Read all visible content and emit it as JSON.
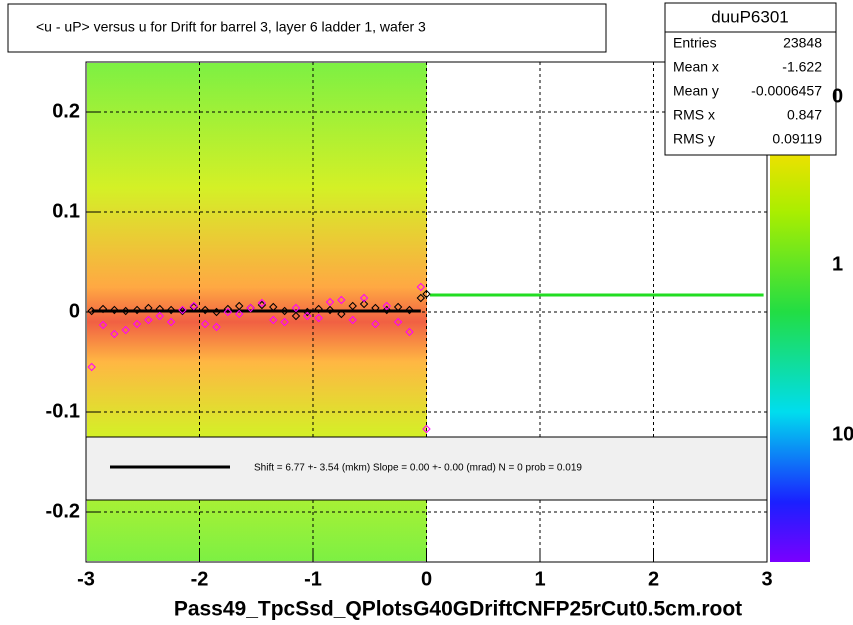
{
  "chart_data": {
    "type": "profile",
    "title": "<u - uP>       versus   u for Drift for barrel 3, layer 6 ladder 1, wafer 3",
    "x_label": "Pass49_TpcSsd_QPlotsG40GDriftCNFP25rCut0.5cm.root",
    "xlim": [
      -3,
      3
    ],
    "ylim": [
      -0.25,
      0.25
    ],
    "xticks": [
      -3,
      -2,
      -1,
      0,
      1,
      2,
      3
    ],
    "yticks": [
      -0.2,
      -0.1,
      0,
      0.1,
      0.2
    ],
    "grid": true,
    "x": [
      -2.95,
      -2.85,
      -2.75,
      -2.65,
      -2.55,
      -2.45,
      -2.35,
      -2.25,
      -2.15,
      -2.05,
      -1.95,
      -1.85,
      -1.75,
      -1.65,
      -1.55,
      -1.45,
      -1.35,
      -1.25,
      -1.15,
      -1.05,
      -0.95,
      -0.85,
      -0.75,
      -0.65,
      -0.55,
      -0.45,
      -0.35,
      -0.25,
      -0.15,
      -0.05,
      0.0
    ],
    "series": [
      {
        "name": "profile",
        "color": "#000000",
        "values": [
          0.001,
          0.003,
          0.002,
          0.001,
          0.002,
          0.004,
          0.003,
          0.002,
          0.001,
          0.005,
          0.002,
          0.0,
          0.003,
          0.006,
          0.004,
          0.007,
          0.005,
          0.001,
          -0.004,
          0.0,
          0.003,
          0.002,
          -0.002,
          0.006,
          0.008,
          0.004,
          0.002,
          0.005,
          0.002,
          0.014,
          0.018
        ]
      },
      {
        "name": "mean",
        "color": "#ff00ff",
        "values": [
          -0.055,
          -0.013,
          -0.022,
          -0.018,
          -0.012,
          -0.008,
          -0.004,
          -0.01,
          0.002,
          0.006,
          -0.012,
          -0.015,
          0.0,
          -0.002,
          0.004,
          0.009,
          -0.008,
          -0.01,
          0.004,
          -0.004,
          -0.006,
          0.01,
          0.012,
          -0.008,
          0.014,
          -0.012,
          0.006,
          -0.01,
          -0.02,
          0.025,
          -0.117
        ]
      }
    ],
    "fit_lines": [
      {
        "x": [
          -2.95,
          -0.05
        ],
        "y": [
          0.001,
          0.001
        ],
        "color": "#000000"
      },
      {
        "x": [
          0.03,
          2.97
        ],
        "y": [
          0.017,
          0.017
        ],
        "color": "#22dd22"
      }
    ],
    "z_ticks": [
      "0",
      "1",
      "10"
    ],
    "legend_text": "Shift =     6.77 +- 3.54 (mkm) Slope =     0.00 +- 0.00 (mrad)  N = 0 prob = 0.019",
    "stats": {
      "name": "duuP6301",
      "rows": [
        {
          "label": "Entries",
          "value": "23848"
        },
        {
          "label": "Mean x",
          "value": "-1.622"
        },
        {
          "label": "Mean y",
          "value": "-0.0006457"
        },
        {
          "label": "RMS x",
          "value": "0.847"
        },
        {
          "label": "RMS y",
          "value": "0.09119"
        }
      ]
    }
  }
}
